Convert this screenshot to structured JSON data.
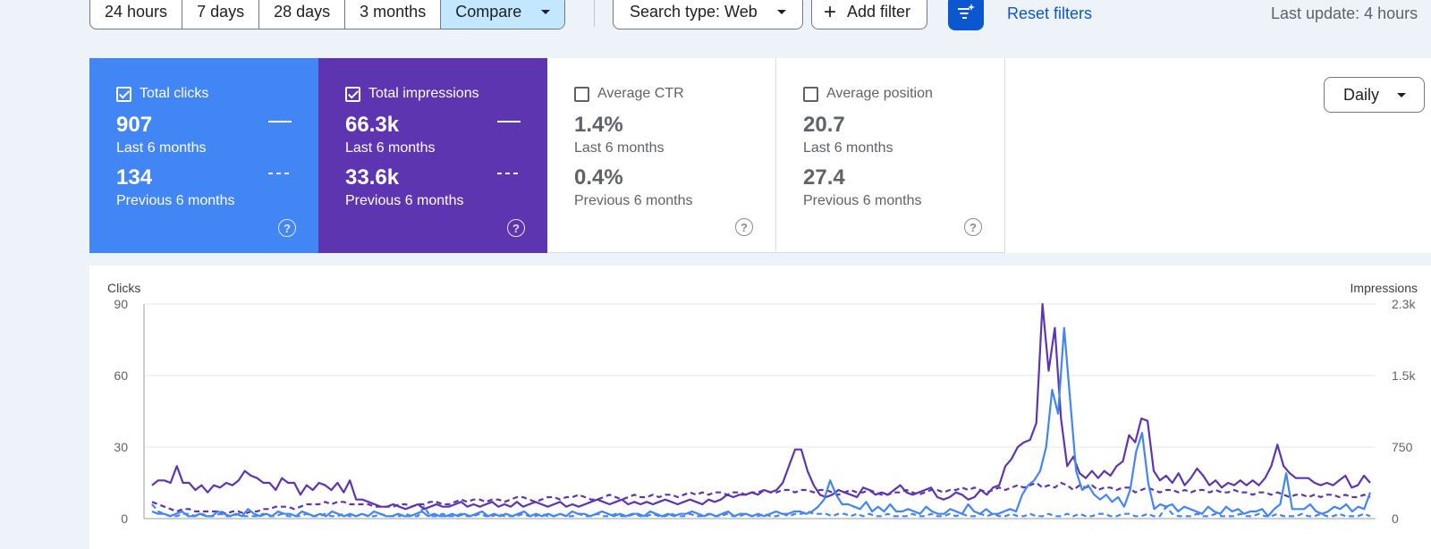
{
  "filters": {
    "ranges": [
      {
        "label": "24 hours",
        "active": false
      },
      {
        "label": "7 days",
        "active": false
      },
      {
        "label": "28 days",
        "active": false
      },
      {
        "label": "3 months",
        "active": false
      },
      {
        "label": "Compare",
        "active": true
      }
    ],
    "search_type": "Search type: Web",
    "add_filter": "Add filter",
    "reset": "Reset filters",
    "last_update": "Last update: 4 hours"
  },
  "metrics": [
    {
      "label": "Total clicks",
      "checked": true,
      "value": "907",
      "period": "Last 6 months",
      "prev_value": "134",
      "prev_period": "Previous 6 months"
    },
    {
      "label": "Total impressions",
      "checked": true,
      "value": "66.3k",
      "period": "Last 6 months",
      "prev_value": "33.6k",
      "prev_period": "Previous 6 months"
    },
    {
      "label": "Average CTR",
      "checked": false,
      "value": "1.4%",
      "period": "Last 6 months",
      "prev_value": "0.4%",
      "prev_period": "Previous 6 months"
    },
    {
      "label": "Average position",
      "checked": false,
      "value": "20.7",
      "period": "Last 6 months",
      "prev_value": "27.4",
      "prev_period": "Previous 6 months"
    }
  ],
  "granularity": "Daily",
  "colors": {
    "clicks": "#4285f4",
    "impressions": "#5e35b1",
    "link": "#0b57d0"
  },
  "icons": {
    "filter": "filter-sparkle-icon",
    "help": "help-circle-icon",
    "caret": "caret-down-icon",
    "plus": "plus-icon"
  },
  "chart_data": {
    "type": "line",
    "left_axis": {
      "title": "Clicks",
      "ticks": [
        "90",
        "60",
        "30",
        "0"
      ],
      "range": [
        0,
        90
      ]
    },
    "right_axis": {
      "title": "Impressions",
      "ticks": [
        "2.3k",
        "1.5k",
        "750",
        "0"
      ],
      "range": [
        0,
        2250
      ]
    },
    "grid": true,
    "series": [
      {
        "name": "Total clicks",
        "axis": "left",
        "style": "solid",
        "color": "#4285f4",
        "values": [
          3,
          2,
          2,
          1,
          2,
          3,
          1,
          1,
          2,
          1,
          1,
          3,
          2,
          1,
          2,
          1,
          4,
          2,
          1,
          2,
          1,
          3,
          2,
          2,
          1,
          3,
          2,
          1,
          2,
          1,
          3,
          2,
          1,
          2,
          1,
          2,
          1,
          3,
          2,
          1,
          1,
          2,
          1,
          1,
          2,
          3,
          1,
          2,
          1,
          1,
          2,
          1,
          2,
          1,
          2,
          3,
          1,
          2,
          1,
          2,
          1,
          2,
          3,
          1,
          2,
          1,
          2,
          1,
          2,
          1,
          3,
          2,
          2,
          1,
          2,
          3,
          2,
          1,
          2,
          1,
          2,
          2,
          1,
          3,
          2,
          1,
          2,
          1,
          2,
          2,
          3,
          2,
          1,
          2,
          1,
          2,
          3,
          1,
          2,
          2,
          1,
          2,
          1,
          2,
          3,
          2,
          2,
          3,
          3,
          2,
          3,
          5,
          8,
          16,
          10,
          6,
          6,
          5,
          4,
          7,
          3,
          5,
          3,
          6,
          3,
          3,
          4,
          3,
          2,
          5,
          3,
          2,
          2,
          4,
          3,
          2,
          6,
          3,
          2,
          4,
          2,
          2,
          3,
          4,
          3,
          10,
          14,
          16,
          20,
          30,
          54,
          44,
          80,
          50,
          20,
          12,
          14,
          10,
          8,
          10,
          7,
          9,
          5,
          12,
          28,
          36,
          15,
          4,
          6,
          5,
          6,
          3,
          5,
          4,
          3,
          2,
          5,
          3,
          2,
          5,
          3,
          4,
          2,
          3,
          3,
          4,
          1,
          4,
          6,
          19,
          4,
          4,
          4,
          6,
          3,
          2,
          3,
          5,
          4,
          6,
          3,
          5,
          4,
          11
        ]
      },
      {
        "name": "Total impressions",
        "axis": "left",
        "style": "solid",
        "color": "#5e35b1",
        "values": [
          14,
          16,
          16,
          15,
          22,
          15,
          15,
          12,
          14,
          11,
          14,
          13,
          15,
          14,
          16,
          20,
          18,
          17,
          15,
          15,
          12,
          17,
          15,
          15,
          10,
          14,
          12,
          15,
          14,
          12,
          15,
          11,
          16,
          8,
          8,
          7,
          6,
          5,
          5,
          6,
          5,
          4,
          5,
          6,
          4,
          5,
          6,
          5,
          5,
          6,
          7,
          5,
          6,
          5,
          6,
          7,
          5,
          6,
          5,
          7,
          5,
          6,
          7,
          6,
          5,
          6,
          7,
          5,
          6,
          5,
          6,
          7,
          8,
          7,
          6,
          7,
          8,
          6,
          7,
          6,
          7,
          6,
          7,
          8,
          7,
          6,
          7,
          8,
          7,
          6,
          8,
          7,
          8,
          10,
          9,
          10,
          10,
          11,
          10,
          12,
          11,
          12,
          15,
          22,
          29,
          29,
          20,
          14,
          10,
          9,
          10,
          12,
          11,
          10,
          9,
          13,
          12,
          10,
          11,
          10,
          12,
          14,
          11,
          10,
          11,
          12,
          13,
          9,
          8,
          9,
          11,
          10,
          8,
          9,
          12,
          10,
          13,
          14,
          22,
          25,
          30,
          32,
          33,
          40,
          90,
          62,
          80,
          42,
          22,
          26,
          19,
          17,
          20,
          17,
          20,
          18,
          22,
          24,
          35,
          32,
          42,
          41,
          20,
          16,
          18,
          15,
          19,
          14,
          17,
          21,
          18,
          14,
          16,
          13,
          15,
          14,
          16,
          14,
          16,
          14,
          17,
          22,
          31,
          22,
          19,
          17,
          17,
          17,
          15,
          14,
          15,
          14,
          16,
          18,
          13,
          14,
          18,
          15
        ]
      },
      {
        "name": "Total clicks (previous)",
        "axis": "left",
        "style": "dashed",
        "color": "#4285f4",
        "values": [
          6,
          3,
          2,
          1,
          1,
          2,
          2,
          1,
          2,
          1,
          1,
          2,
          1,
          1,
          2,
          1,
          1,
          1,
          2,
          1,
          1,
          2,
          1,
          1,
          1,
          2,
          1,
          1,
          2,
          1,
          1,
          2,
          1,
          1,
          2,
          1,
          1,
          2,
          1,
          1,
          1,
          2,
          1,
          1,
          5,
          1,
          1,
          2,
          1,
          1,
          2,
          1,
          1,
          2,
          1,
          1,
          2,
          1,
          1,
          1,
          2,
          1,
          1,
          2,
          1,
          1,
          2,
          1,
          1,
          2,
          1,
          1,
          2,
          1,
          1,
          2,
          1,
          1,
          2,
          1,
          1,
          2,
          1,
          1,
          2,
          1,
          1,
          2,
          1,
          1,
          2,
          1,
          1,
          2,
          1,
          1,
          2,
          1,
          1,
          2,
          1,
          1,
          2,
          1,
          2,
          2,
          3,
          2,
          2,
          2,
          1,
          2,
          2,
          1,
          2,
          1,
          2,
          1,
          1,
          2,
          1,
          1,
          1,
          2,
          1,
          1,
          2,
          1,
          1,
          2,
          1,
          2,
          1,
          1,
          2,
          1,
          2,
          1,
          1,
          2,
          1,
          1,
          2,
          1,
          1,
          2,
          1,
          1,
          2,
          1,
          2,
          1,
          1,
          2,
          2,
          1,
          1,
          2,
          2,
          1,
          1,
          2,
          1,
          1,
          5,
          2,
          1,
          1,
          1,
          2,
          1,
          1,
          2,
          1,
          1,
          1,
          2,
          1,
          1,
          2,
          1,
          1,
          2,
          1,
          1,
          1,
          2,
          1,
          1,
          2,
          1,
          1,
          2,
          1,
          1,
          1,
          2,
          1
        ]
      },
      {
        "name": "Total impressions (previous)",
        "axis": "left",
        "style": "dashed",
        "color": "#5e35b1",
        "values": [
          7,
          6,
          5,
          4,
          3,
          4,
          4,
          3,
          3,
          3,
          3,
          3,
          2,
          3,
          3,
          2,
          3,
          3,
          4,
          4,
          5,
          5,
          5,
          4,
          5,
          6,
          6,
          6,
          7,
          6,
          7,
          7,
          6,
          6,
          6,
          6,
          5,
          5,
          5,
          5,
          6,
          6,
          5,
          6,
          6,
          7,
          7,
          6,
          6,
          7,
          8,
          7,
          8,
          8,
          7,
          8,
          8,
          7,
          8,
          9,
          9,
          8,
          7,
          8,
          9,
          9,
          8,
          9,
          9,
          10,
          9,
          8,
          8,
          9,
          10,
          9,
          8,
          9,
          10,
          9,
          9,
          10,
          9,
          10,
          10,
          9,
          10,
          11,
          10,
          11,
          10,
          11,
          11,
          10,
          11,
          11,
          10,
          11,
          11,
          12,
          11,
          11,
          12,
          12,
          11,
          12,
          12,
          11,
          12,
          12,
          11,
          10,
          11,
          12,
          11,
          11,
          12,
          11,
          10,
          10,
          11,
          11,
          12,
          11,
          10,
          11,
          12,
          12,
          11,
          12,
          12,
          13,
          12,
          13,
          12,
          11,
          12,
          13,
          12,
          13,
          14,
          13,
          14,
          15,
          13,
          14,
          13,
          15,
          14,
          12,
          14,
          13,
          14,
          12,
          13,
          13,
          12,
          13,
          13,
          11,
          12,
          13,
          12,
          11,
          12,
          12,
          11,
          12,
          11,
          12,
          12,
          11,
          12,
          11,
          11,
          12,
          11,
          11,
          10,
          11,
          11,
          10,
          11,
          10,
          9,
          10,
          10,
          9,
          10,
          9,
          10,
          10,
          9,
          10,
          9,
          9,
          10,
          9
        ]
      }
    ]
  }
}
